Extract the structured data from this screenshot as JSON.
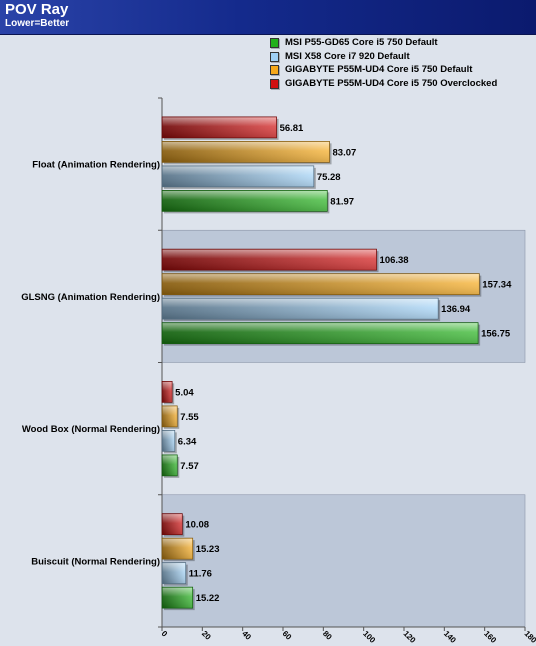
{
  "header": {
    "title": "POV Ray",
    "subtitle": "Lower=Better"
  },
  "chart_data": {
    "type": "bar",
    "orientation": "horizontal",
    "title": "POV Ray",
    "subtitle": "Lower=Better",
    "xlabel": "",
    "ylabel": "",
    "xlim": [
      0,
      180
    ],
    "x_ticks": [
      0,
      20,
      40,
      60,
      80,
      100,
      120,
      140,
      160,
      180
    ],
    "legend_position": "top-right",
    "categories": [
      "Float (Animation Rendering)",
      "GLSNG (Animation Rendering)",
      "Wood Box (Normal Rendering)",
      "Buiscuit (Normal Rendering)"
    ],
    "series": [
      {
        "name": "MSI P55-GD65 Core i5 750 Default",
        "color": "#22b01a",
        "values": [
          81.97,
          156.75,
          7.57,
          15.22
        ]
      },
      {
        "name": "MSI X58 Core i7 920 Default",
        "color": "#9fd0f5",
        "values": [
          75.28,
          136.94,
          6.34,
          11.76
        ]
      },
      {
        "name": "GIGABYTE P55M-UD4 Core i5 750 Default",
        "color": "#f5a81a",
        "values": [
          83.07,
          157.34,
          7.55,
          15.23
        ]
      },
      {
        "name": "GIGABYTE P55M-UD4 Core i5 750 Overclocked",
        "color": "#d01010",
        "values": [
          56.81,
          106.38,
          5.04,
          10.08
        ]
      }
    ],
    "value_labels": [
      [
        "81.97",
        "156.75",
        "7.57",
        "15.22"
      ],
      [
        "75.28",
        "136.94",
        "6.34",
        "11.76"
      ],
      [
        "83.07",
        "157.34",
        "7.55",
        "15.23"
      ],
      [
        "56.81",
        "106.38",
        "5.04",
        "10.08"
      ]
    ],
    "background_color": "#dde3ec",
    "band_color": "#bcc7d8"
  }
}
